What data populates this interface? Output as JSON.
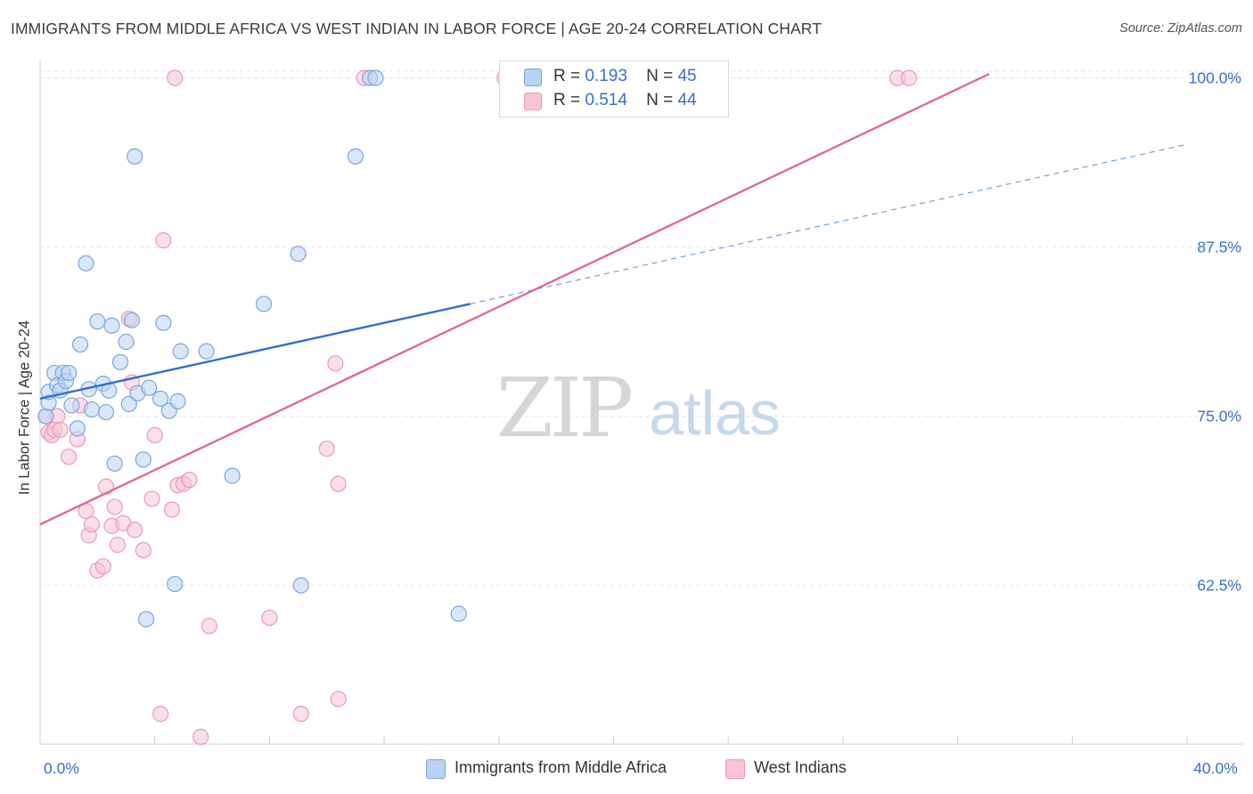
{
  "title": "IMMIGRANTS FROM MIDDLE AFRICA VS WEST INDIAN IN LABOR FORCE | AGE 20-24 CORRELATION CHART",
  "source": "Source: ZipAtlas.com",
  "watermark": {
    "zip": "ZIP",
    "atlas": "atlas"
  },
  "colors": {
    "blue_fill": "#b9d3f2",
    "blue_stroke": "#7aa6e0",
    "blue_line": "#2f6fcf",
    "pink_fill": "#f7c4d3",
    "pink_stroke": "#ec98b2",
    "pink_line": "#e06a93",
    "axis_text": "#3a6fc9",
    "grid": "#e3e3e3"
  },
  "legend": {
    "rows": [
      {
        "r_label": "R =",
        "r_value": "0.193",
        "n_label": "N =",
        "n_value": "45"
      },
      {
        "r_label": "R =",
        "r_value": "0.514",
        "n_label": "N =",
        "n_value": "44"
      }
    ]
  },
  "bottom_legend": {
    "blue": "Immigrants from Middle Africa",
    "pink": "West Indians"
  },
  "chart_data": {
    "type": "scatter",
    "title": "IMMIGRANTS FROM MIDDLE AFRICA VS WEST INDIAN IN LABOR FORCE | AGE 20-24 CORRELATION CHART",
    "xlabel": "",
    "ylabel": "In Labor Force | Age 20-24",
    "xlim": [
      0,
      40
    ],
    "ylim": [
      50.5,
      100.5
    ],
    "x_tick_labels": [
      "0.0%",
      "40.0%"
    ],
    "y_ticks": [
      62.5,
      75.0,
      87.5,
      100.0
    ],
    "y_tick_labels": [
      "62.5%",
      "75.0%",
      "87.5%",
      "100.0%"
    ],
    "series": [
      {
        "name": "Immigrants from Middle Africa",
        "color": "blue",
        "trend": {
          "x0": 0.0,
          "y0": 76.3,
          "x1": 15.0,
          "y1": 83.3,
          "dash_x1": 40.0,
          "dash_y1": 95.1
        },
        "points": [
          [
            0.2,
            75.0
          ],
          [
            0.3,
            76.0
          ],
          [
            0.3,
            76.8
          ],
          [
            0.5,
            78.2
          ],
          [
            0.6,
            77.3
          ],
          [
            0.7,
            76.9
          ],
          [
            0.8,
            78.2
          ],
          [
            0.9,
            77.6
          ],
          [
            1.0,
            78.2
          ],
          [
            1.1,
            75.8
          ],
          [
            1.3,
            74.1
          ],
          [
            1.4,
            80.3
          ],
          [
            1.6,
            86.3
          ],
          [
            1.7,
            77.0
          ],
          [
            1.8,
            75.5
          ],
          [
            2.0,
            82.0
          ],
          [
            2.2,
            77.4
          ],
          [
            2.3,
            75.3
          ],
          [
            2.4,
            76.9
          ],
          [
            2.5,
            81.7
          ],
          [
            2.6,
            71.5
          ],
          [
            2.8,
            79.0
          ],
          [
            3.0,
            80.5
          ],
          [
            3.1,
            75.9
          ],
          [
            3.2,
            82.1
          ],
          [
            3.4,
            76.7
          ],
          [
            3.6,
            71.8
          ],
          [
            3.3,
            94.2
          ],
          [
            3.8,
            77.1
          ],
          [
            3.7,
            60.0
          ],
          [
            4.2,
            76.3
          ],
          [
            4.3,
            81.9
          ],
          [
            4.5,
            75.4
          ],
          [
            4.7,
            62.6
          ],
          [
            4.8,
            76.1
          ],
          [
            4.9,
            79.8
          ],
          [
            5.8,
            79.8
          ],
          [
            6.7,
            70.6
          ],
          [
            7.8,
            83.3
          ],
          [
            9.0,
            87.0
          ],
          [
            9.1,
            62.5
          ],
          [
            11.0,
            94.2
          ],
          [
            11.5,
            100.0
          ],
          [
            11.7,
            100.0
          ],
          [
            14.6,
            60.4
          ]
        ]
      },
      {
        "name": "West Indians",
        "color": "pink",
        "trend": {
          "x0": 0.0,
          "y0": 67.0,
          "x1": 33.1,
          "y1": 100.3
        },
        "points": [
          [
            0.2,
            75.0
          ],
          [
            0.3,
            73.8
          ],
          [
            0.4,
            73.6
          ],
          [
            0.5,
            74.0
          ],
          [
            0.6,
            75.0
          ],
          [
            0.7,
            74.0
          ],
          [
            1.0,
            72.0
          ],
          [
            1.3,
            73.3
          ],
          [
            1.4,
            75.8
          ],
          [
            1.6,
            68.0
          ],
          [
            1.7,
            66.2
          ],
          [
            1.8,
            67.0
          ],
          [
            2.0,
            63.6
          ],
          [
            2.2,
            63.9
          ],
          [
            2.3,
            69.8
          ],
          [
            2.5,
            66.9
          ],
          [
            2.6,
            68.3
          ],
          [
            2.7,
            65.5
          ],
          [
            2.9,
            67.1
          ],
          [
            3.1,
            82.2
          ],
          [
            3.2,
            77.5
          ],
          [
            3.3,
            66.6
          ],
          [
            3.6,
            65.1
          ],
          [
            3.9,
            68.9
          ],
          [
            4.0,
            73.6
          ],
          [
            4.2,
            53.0
          ],
          [
            4.3,
            88.0
          ],
          [
            4.6,
            68.1
          ],
          [
            4.7,
            100.0
          ],
          [
            4.8,
            69.9
          ],
          [
            5.0,
            70.0
          ],
          [
            5.2,
            70.3
          ],
          [
            5.6,
            51.3
          ],
          [
            5.9,
            59.5
          ],
          [
            8.0,
            60.1
          ],
          [
            9.1,
            53.0
          ],
          [
            10.0,
            72.6
          ],
          [
            10.3,
            78.9
          ],
          [
            10.4,
            54.1
          ],
          [
            11.3,
            100.0
          ],
          [
            16.2,
            100.0
          ],
          [
            29.9,
            100.0
          ],
          [
            30.3,
            100.0
          ],
          [
            10.4,
            70.0
          ]
        ]
      }
    ]
  }
}
